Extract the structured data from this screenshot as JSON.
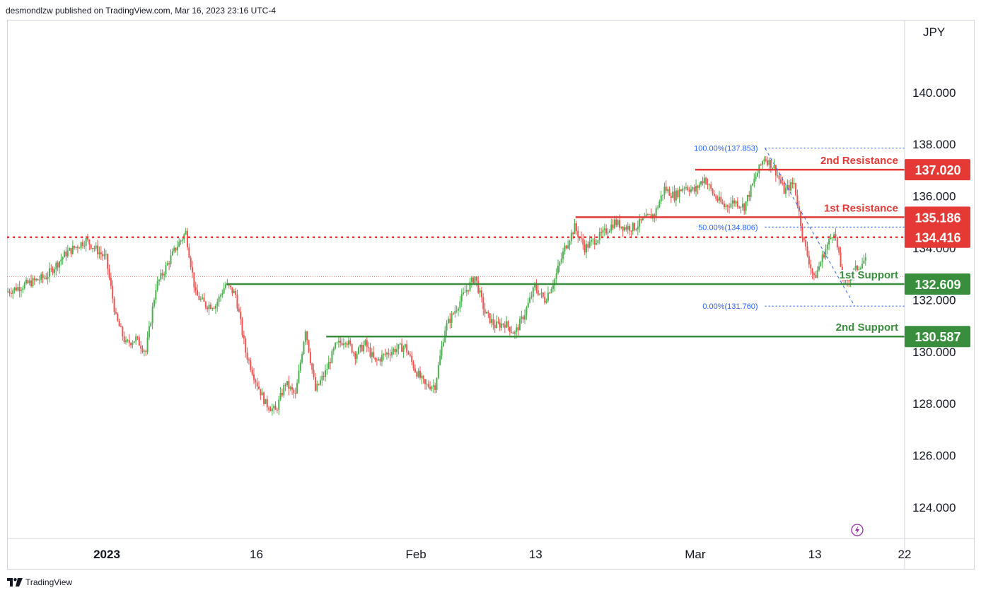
{
  "header": {
    "published_text": "desmondlzw published on TradingView.com, Mar 16, 2023 23:16 UTC-4"
  },
  "footer": {
    "logo_text": "TradingView"
  },
  "colors": {
    "up": "#26a69a",
    "up_candle": "#4caf50",
    "down": "#ef5350",
    "resistance": "#e53935",
    "support": "#388e3c",
    "fib": "#2962ff",
    "axis_text": "#131722",
    "grid_border": "#d1d4dc"
  },
  "chart_data": {
    "type": "candlestick",
    "currency_label": "JPY",
    "ylim": [
      122.8,
      142.8
    ],
    "y_ticks": [
      {
        "value": 140,
        "label": "140.000"
      },
      {
        "value": 138,
        "label": "138.000"
      },
      {
        "value": 136,
        "label": "136.000"
      },
      {
        "value": 134,
        "label": "134.000"
      },
      {
        "value": 132,
        "label": "132.000"
      },
      {
        "value": 130,
        "label": "130.000"
      },
      {
        "value": 128,
        "label": "128.000"
      },
      {
        "value": 126,
        "label": "126.000"
      },
      {
        "value": 124,
        "label": "124.000"
      }
    ],
    "x_ticks": [
      {
        "label": "2023",
        "bold": true,
        "date": "2023-01-01"
      },
      {
        "label": "16",
        "bold": false,
        "date": "2023-01-16"
      },
      {
        "label": "Feb",
        "bold": false,
        "date": "2023-02-01"
      },
      {
        "label": "13",
        "bold": false,
        "date": "2023-02-13"
      },
      {
        "label": "Mar",
        "bold": false,
        "date": "2023-03-01"
      },
      {
        "label": "13",
        "bold": false,
        "date": "2023-03-13"
      },
      {
        "label": "22",
        "bold": false,
        "date": "2023-03-22"
      }
    ],
    "x_range": [
      "2022-12-22",
      "2023-03-22"
    ],
    "price_path": [
      [
        "2022-12-22",
        132.3
      ],
      [
        "2022-12-26",
        132.9
      ],
      [
        "2022-12-28",
        133.8
      ],
      [
        "2022-12-30",
        134.3
      ],
      [
        "2023-01-01",
        133.6
      ],
      [
        "2023-01-02",
        131.3
      ],
      [
        "2023-01-03",
        130.3
      ],
      [
        "2023-01-04",
        130.5
      ],
      [
        "2023-01-05",
        130.0
      ],
      [
        "2023-01-06",
        132.5
      ],
      [
        "2023-01-08",
        134.0
      ],
      [
        "2023-01-09",
        134.6
      ],
      [
        "2023-01-10",
        132.2
      ],
      [
        "2023-01-11",
        131.8
      ],
      [
        "2023-01-12",
        131.8
      ],
      [
        "2023-01-13",
        132.6
      ],
      [
        "2023-01-14",
        132.2
      ],
      [
        "2023-01-15",
        130.0
      ],
      [
        "2023-01-16",
        128.9
      ],
      [
        "2023-01-17",
        128.0
      ],
      [
        "2023-01-18",
        127.7
      ],
      [
        "2023-01-19",
        128.8
      ],
      [
        "2023-01-20",
        128.3
      ],
      [
        "2023-01-21",
        130.9
      ],
      [
        "2023-01-22",
        128.5
      ],
      [
        "2023-01-23",
        129.2
      ],
      [
        "2023-01-24",
        130.2
      ],
      [
        "2023-01-25",
        130.5
      ],
      [
        "2023-01-26",
        129.9
      ],
      [
        "2023-01-27",
        130.3
      ],
      [
        "2023-01-28",
        129.6
      ],
      [
        "2023-01-29",
        129.9
      ],
      [
        "2023-01-30",
        130.1
      ],
      [
        "2023-01-31",
        130.2
      ],
      [
        "2023-02-01",
        129.3
      ],
      [
        "2023-02-02",
        128.7
      ],
      [
        "2023-02-03",
        128.7
      ],
      [
        "2023-02-04",
        130.9
      ],
      [
        "2023-02-05",
        131.6
      ],
      [
        "2023-02-06",
        132.3
      ],
      [
        "2023-02-07",
        132.9
      ],
      [
        "2023-02-08",
        131.5
      ],
      [
        "2023-02-09",
        131.0
      ],
      [
        "2023-02-10",
        131.1
      ],
      [
        "2023-02-11",
        130.7
      ],
      [
        "2023-02-12",
        131.5
      ],
      [
        "2023-02-13",
        132.5
      ],
      [
        "2023-02-14",
        132.0
      ],
      [
        "2023-02-15",
        132.8
      ],
      [
        "2023-02-16",
        134.0
      ],
      [
        "2023-02-17",
        134.8
      ],
      [
        "2023-02-18",
        134.0
      ],
      [
        "2023-02-19",
        134.3
      ],
      [
        "2023-02-20",
        134.6
      ],
      [
        "2023-02-21",
        135.0
      ],
      [
        "2023-02-22",
        134.8
      ],
      [
        "2023-02-23",
        134.8
      ],
      [
        "2023-02-24",
        135.1
      ],
      [
        "2023-02-25",
        135.3
      ],
      [
        "2023-02-26",
        136.3
      ],
      [
        "2023-02-27",
        136.0
      ],
      [
        "2023-02-28",
        136.4
      ],
      [
        "2023-03-01",
        136.2
      ],
      [
        "2023-03-02",
        136.7
      ],
      [
        "2023-03-03",
        136.0
      ],
      [
        "2023-03-04",
        135.6
      ],
      [
        "2023-03-05",
        135.8
      ],
      [
        "2023-03-06",
        135.6
      ],
      [
        "2023-03-07",
        136.6
      ],
      [
        "2023-03-08",
        137.5
      ],
      [
        "2023-03-09",
        137.1
      ],
      [
        "2023-03-10",
        136.2
      ],
      [
        "2023-03-11",
        136.5
      ],
      [
        "2023-03-12",
        134.2
      ],
      [
        "2023-03-13",
        132.8
      ],
      [
        "2023-03-14",
        133.8
      ],
      [
        "2023-03-15",
        134.7
      ],
      [
        "2023-03-16",
        132.6
      ],
      [
        "2023-03-17",
        133.1
      ],
      [
        "2023-03-18",
        133.5
      ]
    ],
    "levels": [
      {
        "name": "2nd Resistance",
        "value": 137.02,
        "label": "137.020",
        "kind": "resistance",
        "style": "solid",
        "start": "2023-03-01"
      },
      {
        "name": "1st Resistance",
        "value": 135.186,
        "label": "135.186",
        "kind": "resistance",
        "style": "solid",
        "start": "2023-02-17"
      },
      {
        "name": "",
        "value": 134.416,
        "label": "134.416",
        "kind": "resistance",
        "style": "dotted",
        "start": "2022-12-22"
      },
      {
        "name": "1st Support",
        "value": 132.609,
        "label": "132.609",
        "kind": "support",
        "style": "solid",
        "start": "2023-01-13"
      },
      {
        "name": "2nd Support",
        "value": 130.587,
        "label": "130.587",
        "kind": "support",
        "style": "solid",
        "start": "2023-01-23"
      }
    ],
    "fib_levels": [
      {
        "label": "100.00%(137.853)",
        "value": 137.853
      },
      {
        "label": "50.00%(134.806)",
        "value": 134.806
      },
      {
        "label": "0.00%(131.760)",
        "value": 131.76
      }
    ],
    "fib_start": "2023-03-08",
    "fib_end": "2023-03-17",
    "current_price_line": 132.9
  }
}
